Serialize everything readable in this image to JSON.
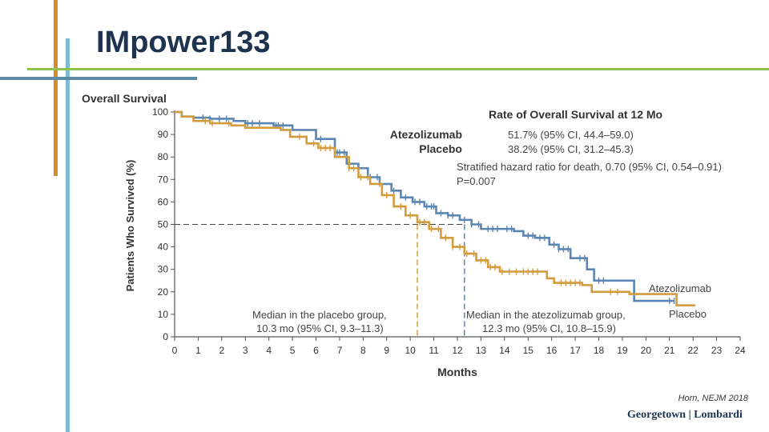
{
  "slide": {
    "title": "IMpower133",
    "citation": "Horn, NEJM 2018",
    "logo_text": "Georgetown | Lombardi",
    "colors": {
      "orange_bar": "#D58A2B",
      "blue_bar": "#7DBAD6",
      "green_line": "#8DC04C",
      "slate_line": "#5F8CA5"
    }
  },
  "chart_data": {
    "type": "line",
    "title": "Overall Survival",
    "xlabel": "Months",
    "ylabel": "Patients Who Survived (%)",
    "xlim": [
      0,
      24
    ],
    "ylim": [
      0,
      100
    ],
    "x_ticks": [
      "0",
      "1",
      "2",
      "3",
      "4",
      "5",
      "6",
      "7",
      "8",
      "9",
      "10",
      "11",
      "12",
      "13",
      "14",
      "15",
      "16",
      "17",
      "18",
      "19",
      "20",
      "21",
      "22",
      "23",
      "24"
    ],
    "y_ticks": [
      "0",
      "10",
      "20",
      "30",
      "40",
      "50",
      "60",
      "70",
      "80",
      "90",
      "100"
    ],
    "series": [
      {
        "name": "Atezolizumab",
        "color": "#5A86B4",
        "step": true,
        "points": [
          [
            0,
            100
          ],
          [
            0.3,
            98
          ],
          [
            0.8,
            97.5
          ],
          [
            1.5,
            97
          ],
          [
            2.5,
            96
          ],
          [
            3,
            95
          ],
          [
            4.2,
            94
          ],
          [
            5,
            92
          ],
          [
            6,
            88
          ],
          [
            6.8,
            82
          ],
          [
            7.3,
            77
          ],
          [
            7.8,
            75
          ],
          [
            8.2,
            71
          ],
          [
            8.7,
            68
          ],
          [
            9.2,
            65
          ],
          [
            9.6,
            62
          ],
          [
            10.1,
            60
          ],
          [
            10.6,
            58
          ],
          [
            11.1,
            55
          ],
          [
            11.6,
            54
          ],
          [
            12.1,
            52
          ],
          [
            12.6,
            50
          ],
          [
            13,
            48
          ],
          [
            14,
            48
          ],
          [
            14.4,
            47
          ],
          [
            14.8,
            45
          ],
          [
            15.3,
            44
          ],
          [
            15.9,
            41
          ],
          [
            16.3,
            39
          ],
          [
            16.8,
            35
          ],
          [
            17.5,
            30
          ],
          [
            17.8,
            25
          ],
          [
            19.5,
            16
          ],
          [
            21.2,
            16
          ]
        ],
        "censor_x": [
          1.2,
          1.5,
          1.9,
          2.2,
          3.1,
          3.3,
          3.6,
          4.2,
          4.3,
          4.4,
          4.6,
          6.2,
          6.9,
          7.0,
          7.2,
          7.4,
          8.3,
          8.6,
          9.3,
          9.8,
          10.2,
          10.4,
          10.7,
          10.9,
          11.0,
          11.3,
          11.6,
          11.8,
          12.3,
          12.6,
          12.9,
          13.3,
          13.5,
          13.7,
          14.1,
          14.3,
          15.0,
          15.2,
          15.5,
          15.7,
          16.1,
          16.3,
          16.5,
          16.7,
          17.2,
          17.4,
          18.0,
          18.2,
          21.0,
          21.2
        ]
      },
      {
        "name": "Placebo",
        "color": "#D49B3C",
        "step": true,
        "points": [
          [
            0,
            100
          ],
          [
            0.3,
            98
          ],
          [
            0.8,
            96
          ],
          [
            1.5,
            95
          ],
          [
            2.4,
            94
          ],
          [
            3,
            93
          ],
          [
            4.5,
            92
          ],
          [
            4.9,
            89
          ],
          [
            5.6,
            86
          ],
          [
            6.1,
            84
          ],
          [
            6.8,
            80
          ],
          [
            7.4,
            75
          ],
          [
            7.8,
            71
          ],
          [
            8.3,
            68
          ],
          [
            8.8,
            63
          ],
          [
            9.3,
            58
          ],
          [
            9.8,
            54
          ],
          [
            10.3,
            51
          ],
          [
            10.8,
            48
          ],
          [
            11.3,
            44
          ],
          [
            11.8,
            40
          ],
          [
            12.3,
            37
          ],
          [
            12.8,
            34
          ],
          [
            13.3,
            31
          ],
          [
            13.8,
            29
          ],
          [
            15.8,
            26
          ],
          [
            16.1,
            24
          ],
          [
            17.3,
            23
          ],
          [
            17.7,
            20
          ],
          [
            19.3,
            19
          ],
          [
            21.3,
            14
          ],
          [
            22.1,
            14
          ]
        ],
        "censor_x": [
          1.3,
          1.6,
          2.3,
          5.3,
          5.9,
          6.2,
          6.4,
          6.6,
          7.4,
          7.6,
          7.9,
          8.2,
          8.7,
          9.0,
          9.6,
          10.0,
          10.4,
          10.6,
          10.9,
          11.2,
          11.5,
          11.8,
          12.1,
          12.4,
          12.7,
          13.0,
          13.2,
          13.4,
          13.6,
          13.9,
          14.2,
          14.5,
          14.8,
          15.0,
          15.2,
          15.4,
          16.4,
          16.6,
          16.8,
          17.0,
          17.2,
          18.5,
          18.8
        ]
      }
    ],
    "median_line_y": 50,
    "medians": [
      {
        "series": "Placebo",
        "x": 10.3
      },
      {
        "series": "Atezolizumab",
        "x": 12.3
      }
    ],
    "annotations": {
      "inset_title": "Rate of Overall Survival at 12 Mo",
      "atezo_label": "Atezolizumab",
      "atezo_rate": "51.7% (95% CI, 44.4–59.0)",
      "placebo_label": "Placebo",
      "placebo_rate": "38.2% (95% CI, 31.2–45.3)",
      "hazard": "Stratified hazard ratio for death, 0.70 (95% CI, 0.54–0.91)",
      "p_value": "P=0.007",
      "placebo_median_line1": "Median in the placebo group,",
      "placebo_median_line2": "10.3 mo (95% CI, 9.3–11.3)",
      "atezo_median_line1": "Median in the atezolizumab group,",
      "atezo_median_line2": "12.3 mo (95% CI, 10.8–15.9)",
      "atezo_end_label": "Atezolizumab",
      "placebo_end_label": "Placebo"
    }
  }
}
